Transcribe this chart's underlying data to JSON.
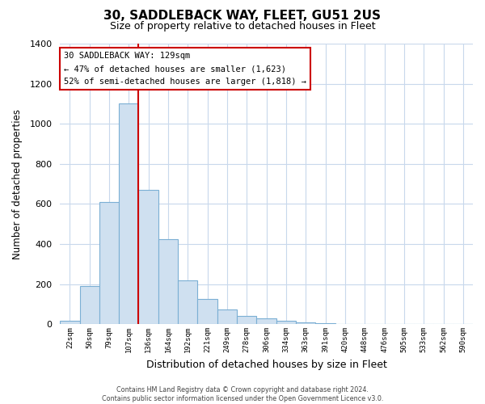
{
  "title": "30, SADDLEBACK WAY, FLEET, GU51 2US",
  "subtitle": "Size of property relative to detached houses in Fleet",
  "xlabel": "Distribution of detached houses by size in Fleet",
  "ylabel": "Number of detached properties",
  "bar_fill_color": "#cfe0f0",
  "bar_edge_color": "#7bafd4",
  "vline_color": "#cc0000",
  "vline_x_index": 4,
  "annotation_text": "30 SADDLEBACK WAY: 129sqm\n← 47% of detached houses are smaller (1,623)\n52% of semi-detached houses are larger (1,818) →",
  "annotation_box_color": "#ffffff",
  "annotation_box_edge": "#cc0000",
  "categories": [
    "22sqm",
    "50sqm",
    "79sqm",
    "107sqm",
    "136sqm",
    "164sqm",
    "192sqm",
    "221sqm",
    "249sqm",
    "278sqm",
    "306sqm",
    "334sqm",
    "363sqm",
    "391sqm",
    "420sqm",
    "448sqm",
    "476sqm",
    "505sqm",
    "533sqm",
    "562sqm",
    "590sqm"
  ],
  "values": [
    15,
    190,
    610,
    1100,
    670,
    425,
    220,
    125,
    75,
    40,
    28,
    18,
    8,
    3,
    2,
    1,
    0,
    0,
    0,
    0,
    0
  ],
  "ylim": [
    0,
    1400
  ],
  "yticks": [
    0,
    200,
    400,
    600,
    800,
    1000,
    1200,
    1400
  ],
  "background_color": "#ffffff",
  "grid_color": "#c8d8ec",
  "footer_text": "Contains HM Land Registry data © Crown copyright and database right 2024.\nContains public sector information licensed under the Open Government Licence v3.0.",
  "title_fontsize": 11,
  "subtitle_fontsize": 9,
  "xlabel_fontsize": 9,
  "ylabel_fontsize": 8.5
}
